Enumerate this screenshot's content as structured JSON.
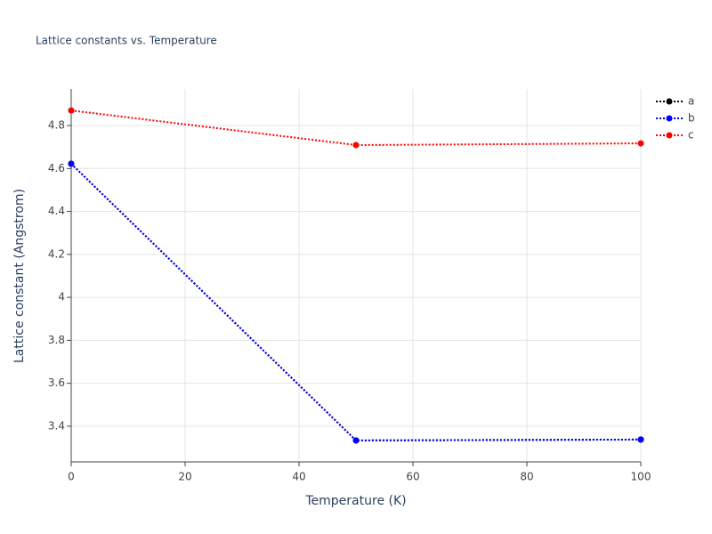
{
  "chart_data": {
    "type": "line",
    "title": "Lattice constants vs. Temperature",
    "x_label": "Temperature (K)",
    "y_label": "Lattice constant (Angstrom)",
    "x": [
      0,
      50,
      100
    ],
    "series": [
      {
        "name": "a",
        "color": "#000000",
        "values": [
          4.622,
          3.334,
          3.338
        ]
      },
      {
        "name": "b",
        "color": "#0000ff",
        "values": [
          4.622,
          3.334,
          3.338
        ]
      },
      {
        "name": "c",
        "color": "#ff0000",
        "values": [
          4.87,
          4.709,
          4.717
        ]
      }
    ],
    "xlim": [
      0,
      100
    ],
    "xticks": [
      0,
      20,
      40,
      60,
      80,
      100
    ],
    "ylim": [
      3.234,
      4.97
    ],
    "yticks": [
      3.4,
      3.6,
      3.8,
      4,
      4.2,
      4.4,
      4.6,
      4.8
    ],
    "grid": true,
    "legend": "top-right"
  }
}
